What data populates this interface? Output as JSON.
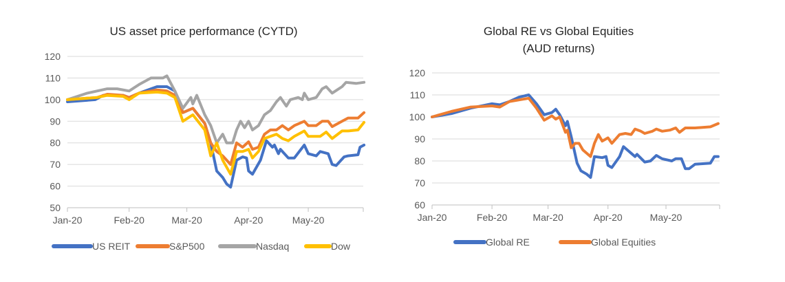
{
  "chart_data": [
    {
      "type": "line",
      "title": "US asset price performance (CYTD)",
      "xlabel": "",
      "ylabel": "",
      "ylim": [
        50,
        120
      ],
      "yticks": [
        "50",
        "60",
        "70",
        "80",
        "90",
        "100",
        "110",
        "120"
      ],
      "xticks": [
        {
          "label": "Jan-20",
          "day": 0
        },
        {
          "label": "Feb-20",
          "day": 31
        },
        {
          "label": "Mar-20",
          "day": 60
        },
        {
          "label": "Apr-20",
          "day": 91
        },
        {
          "label": "May-20",
          "day": 121
        }
      ],
      "x_unit": "days since 1 Jan 2020",
      "legend": "bottom",
      "grid": true,
      "series": [
        {
          "name": "US REIT",
          "color": "#4472C4",
          "points": [
            [
              0,
              99
            ],
            [
              14,
              100
            ],
            [
              18,
              102
            ],
            [
              28,
              102
            ],
            [
              31,
              101
            ],
            [
              36,
              103
            ],
            [
              42,
              105
            ],
            [
              45,
              106
            ],
            [
              50,
              106
            ],
            [
              54,
              104
            ],
            [
              58,
              94
            ],
            [
              63,
              96
            ],
            [
              69,
              89
            ],
            [
              72,
              80
            ],
            [
              75,
              67
            ],
            [
              78,
              64
            ],
            [
              80,
              61
            ],
            [
              82,
              59.5
            ],
            [
              85,
              72
            ],
            [
              88,
              73.5
            ],
            [
              90,
              73
            ],
            [
              91,
              67
            ],
            [
              93,
              65.5
            ],
            [
              97,
              72
            ],
            [
              100,
              81
            ],
            [
              103,
              78
            ],
            [
              104,
              79
            ],
            [
              106,
              75
            ],
            [
              107,
              77
            ],
            [
              111,
              73
            ],
            [
              114,
              73
            ],
            [
              119,
              79
            ],
            [
              121,
              75
            ],
            [
              125,
              74
            ],
            [
              127,
              76
            ],
            [
              131,
              75
            ],
            [
              133,
              70
            ],
            [
              135,
              69.5
            ],
            [
              139,
              73.5
            ],
            [
              141,
              74
            ],
            [
              146,
              74.5
            ],
            [
              147,
              78
            ],
            [
              149,
              79
            ]
          ]
        },
        {
          "name": "S&P500",
          "color": "#ED7D31",
          "points": [
            [
              0,
              100
            ],
            [
              15,
              101
            ],
            [
              20,
              102.5
            ],
            [
              28,
              102
            ],
            [
              31,
              101
            ],
            [
              36,
              103
            ],
            [
              45,
              104.5
            ],
            [
              50,
              104
            ],
            [
              54,
              102
            ],
            [
              58,
              94
            ],
            [
              63,
              96
            ],
            [
              69,
              89
            ],
            [
              72,
              80
            ],
            [
              75,
              76
            ],
            [
              78,
              74
            ],
            [
              82,
              70
            ],
            [
              85,
              80
            ],
            [
              88,
              78
            ],
            [
              91,
              80.5
            ],
            [
              93,
              77
            ],
            [
              96,
              78
            ],
            [
              99,
              84
            ],
            [
              102,
              86
            ],
            [
              105,
              86
            ],
            [
              108,
              88
            ],
            [
              111,
              86
            ],
            [
              114,
              88
            ],
            [
              119,
              90
            ],
            [
              121,
              88
            ],
            [
              125,
              88
            ],
            [
              128,
              90
            ],
            [
              131,
              90
            ],
            [
              133,
              87.5
            ],
            [
              138,
              90
            ],
            [
              141,
              91.5
            ],
            [
              146,
              91.5
            ],
            [
              149,
              94
            ]
          ]
        },
        {
          "name": "Nasdaq",
          "color": "#A5A5A5",
          "points": [
            [
              0,
              100
            ],
            [
              10,
              103
            ],
            [
              20,
              105
            ],
            [
              25,
              105
            ],
            [
              31,
              104
            ],
            [
              36,
              107
            ],
            [
              42,
              110
            ],
            [
              48,
              110
            ],
            [
              50,
              111
            ],
            [
              54,
              104
            ],
            [
              58,
              96
            ],
            [
              62,
              101
            ],
            [
              63,
              98
            ],
            [
              65,
              102
            ],
            [
              69,
              93
            ],
            [
              72,
              88
            ],
            [
              75,
              80
            ],
            [
              78,
              84
            ],
            [
              80,
              80
            ],
            [
              83,
              80
            ],
            [
              85,
              86
            ],
            [
              87,
              90
            ],
            [
              89,
              87
            ],
            [
              91,
              90
            ],
            [
              93,
              86
            ],
            [
              96,
              88
            ],
            [
              99,
              93
            ],
            [
              102,
              95
            ],
            [
              105,
              99
            ],
            [
              107,
              101
            ],
            [
              110,
              97
            ],
            [
              112,
              100
            ],
            [
              116,
              101
            ],
            [
              118,
              100
            ],
            [
              119,
              103
            ],
            [
              121,
              100
            ],
            [
              125,
              101
            ],
            [
              128,
              105
            ],
            [
              130,
              106
            ],
            [
              133,
              103
            ],
            [
              138,
              106
            ],
            [
              140,
              108
            ],
            [
              145,
              107.5
            ],
            [
              149,
              108
            ]
          ]
        },
        {
          "name": "Dow",
          "color": "#FFC000",
          "points": [
            [
              0,
              100
            ],
            [
              15,
              101
            ],
            [
              20,
              102
            ],
            [
              28,
              101.5
            ],
            [
              31,
              100
            ],
            [
              36,
              103
            ],
            [
              45,
              103.5
            ],
            [
              50,
              103
            ],
            [
              54,
              101
            ],
            [
              58,
              90
            ],
            [
              63,
              93
            ],
            [
              69,
              86
            ],
            [
              72,
              74
            ],
            [
              75,
              80
            ],
            [
              78,
              72
            ],
            [
              82,
              65.5
            ],
            [
              85,
              76
            ],
            [
              88,
              76
            ],
            [
              91,
              77
            ],
            [
              93,
              73
            ],
            [
              96,
              76
            ],
            [
              99,
              82
            ],
            [
              102,
              83
            ],
            [
              105,
              84
            ],
            [
              108,
              82
            ],
            [
              111,
              81
            ],
            [
              114,
              83
            ],
            [
              119,
              85.5
            ],
            [
              121,
              83
            ],
            [
              127,
              83
            ],
            [
              130,
              85
            ],
            [
              133,
              82
            ],
            [
              138,
              85.5
            ],
            [
              141,
              85.5
            ],
            [
              146,
              86
            ],
            [
              149,
              89.5
            ]
          ]
        }
      ]
    },
    {
      "type": "line",
      "title": "Global RE vs Global Equities",
      "subtitle": "(AUD returns)",
      "xlabel": "",
      "ylabel": "",
      "ylim": [
        60,
        120
      ],
      "yticks": [
        "60",
        "70",
        "80",
        "90",
        "100",
        "110",
        "120"
      ],
      "xticks": [
        {
          "label": "Jan-20",
          "day": 0
        },
        {
          "label": "Feb-20",
          "day": 31
        },
        {
          "label": "Mar-20",
          "day": 60
        },
        {
          "label": "Apr-20",
          "day": 91
        },
        {
          "label": "May-20",
          "day": 121
        }
      ],
      "x_unit": "days since 1 Jan 2020",
      "legend": "bottom",
      "grid": true,
      "series": [
        {
          "name": "Global RE",
          "color": "#4472C4",
          "points": [
            [
              0,
              100
            ],
            [
              10,
              101.5
            ],
            [
              20,
              104
            ],
            [
              31,
              106
            ],
            [
              35,
              105.5
            ],
            [
              40,
              107
            ],
            [
              45,
              109
            ],
            [
              50,
              110
            ],
            [
              54,
              106
            ],
            [
              58,
              101
            ],
            [
              62,
              102
            ],
            [
              64,
              103.5
            ],
            [
              66,
              101
            ],
            [
              69,
              96
            ],
            [
              70,
              98
            ],
            [
              72,
              91
            ],
            [
              75,
              79
            ],
            [
              77,
              75.5
            ],
            [
              80,
              74
            ],
            [
              82,
              72.5
            ],
            [
              84,
              82
            ],
            [
              88,
              81.5
            ],
            [
              90,
              82
            ],
            [
              91,
              78
            ],
            [
              93,
              77
            ],
            [
              97,
              82
            ],
            [
              99,
              86.5
            ],
            [
              101,
              85
            ],
            [
              103,
              83.5
            ],
            [
              105,
              82
            ],
            [
              106,
              83
            ],
            [
              110,
              79.5
            ],
            [
              113,
              80
            ],
            [
              116,
              82.5
            ],
            [
              119,
              81
            ],
            [
              124,
              80
            ],
            [
              126,
              81
            ],
            [
              129,
              81
            ],
            [
              131,
              76.5
            ],
            [
              133,
              76.5
            ],
            [
              136,
              78.5
            ],
            [
              144,
              79
            ],
            [
              146,
              82
            ],
            [
              148,
              82
            ]
          ]
        },
        {
          "name": "Global Equities",
          "color": "#ED7D31",
          "points": [
            [
              0,
              100
            ],
            [
              10,
              102.5
            ],
            [
              20,
              104.5
            ],
            [
              31,
              105
            ],
            [
              35,
              104.5
            ],
            [
              40,
              107
            ],
            [
              50,
              108.5
            ],
            [
              54,
              104
            ],
            [
              58,
              98.5
            ],
            [
              62,
              100.5
            ],
            [
              64,
              99
            ],
            [
              66,
              100
            ],
            [
              69,
              93
            ],
            [
              70,
              94
            ],
            [
              72,
              86
            ],
            [
              74,
              88
            ],
            [
              76,
              88
            ],
            [
              78,
              85
            ],
            [
              82,
              82
            ],
            [
              84,
              88
            ],
            [
              86,
              92
            ],
            [
              88,
              89
            ],
            [
              91,
              90.5
            ],
            [
              93,
              88
            ],
            [
              97,
              92
            ],
            [
              100,
              92.5
            ],
            [
              103,
              92
            ],
            [
              105,
              94.5
            ],
            [
              108,
              93.5
            ],
            [
              110,
              92.5
            ],
            [
              114,
              93.5
            ],
            [
              116,
              94.5
            ],
            [
              119,
              93.5
            ],
            [
              123,
              94
            ],
            [
              126,
              95
            ],
            [
              128,
              93
            ],
            [
              131,
              95
            ],
            [
              136,
              95
            ],
            [
              144,
              95.5
            ],
            [
              148,
              97
            ]
          ]
        }
      ]
    }
  ]
}
